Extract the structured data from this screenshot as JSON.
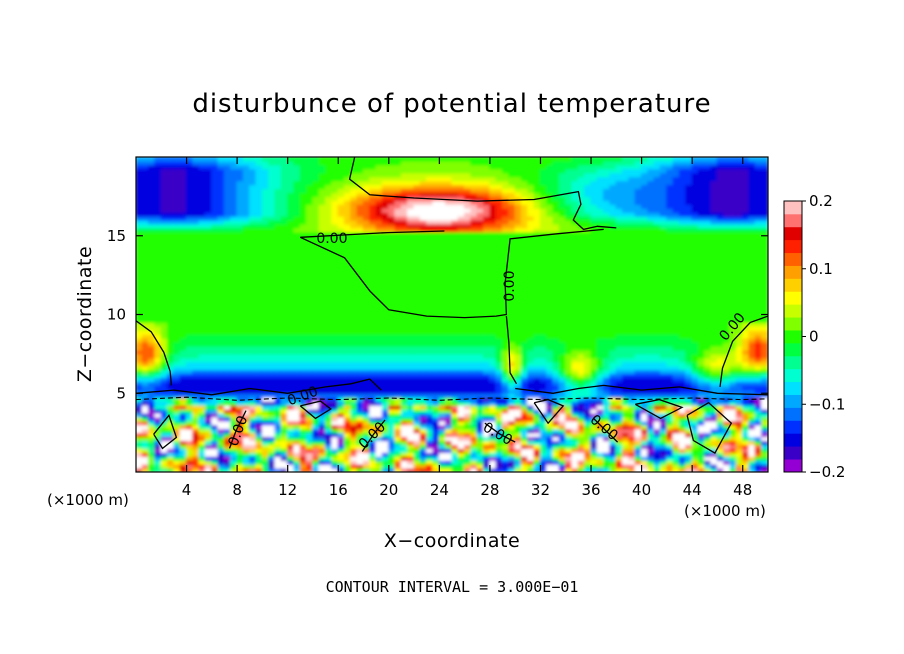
{
  "chart_data": {
    "type": "heatmap",
    "title": "disturbunce of potential temperature",
    "xlabel": "X−coordinate",
    "ylabel": "Z−coordinate",
    "x_unit_left": "(×1000 m)",
    "x_unit_right": "(×1000 m)",
    "xlim": [
      0,
      50
    ],
    "ylim": [
      0,
      20
    ],
    "x_ticks": [
      4,
      8,
      12,
      16,
      20,
      24,
      28,
      32,
      36,
      40,
      44,
      48
    ],
    "x_tick_labels": [
      "4",
      "8",
      "12",
      "16",
      "20",
      "24",
      "28",
      "32",
      "36",
      "40",
      "44",
      "48"
    ],
    "y_ticks": [
      5,
      10,
      15
    ],
    "y_tick_labels": [
      "5",
      "10",
      "15"
    ],
    "contour_interval_text": "CONTOUR INTERVAL = 3.000E−01",
    "contour_labels": [
      {
        "text": "0.00",
        "x": 15.5,
        "z": 14.8,
        "rotate": 0
      },
      {
        "text": "0.00",
        "x": 29.6,
        "z": 11.8,
        "rotate": -90
      },
      {
        "text": "0.00",
        "x": 47.2,
        "z": 9.2,
        "rotate": -50
      },
      {
        "text": "0.00",
        "x": 13.2,
        "z": 4.8,
        "rotate": -20
      },
      {
        "text": "0.00",
        "x": 8.1,
        "z": 2.6,
        "rotate": -70
      },
      {
        "text": "0.00",
        "x": 18.7,
        "z": 2.3,
        "rotate": -45
      },
      {
        "text": "0.00",
        "x": 28.6,
        "z": 2.4,
        "rotate": 30
      },
      {
        "text": "0.00",
        "x": 37.0,
        "z": 2.8,
        "rotate": 40
      }
    ],
    "colorbar": {
      "range": [
        -0.2,
        0.2
      ],
      "tick_labels": [
        "0.2",
        "0.1",
        "0",
        "−0.1",
        "−0.2"
      ],
      "tick_values": [
        0.2,
        0.1,
        0,
        -0.1,
        -0.2
      ],
      "colors": [
        "#9400d3",
        "#3a00c8",
        "#0000e0",
        "#0030ff",
        "#0070ff",
        "#00a8ff",
        "#00e0ff",
        "#00ffd0",
        "#00ff90",
        "#00ff40",
        "#20ff00",
        "#80ff00",
        "#c8ff00",
        "#ffff00",
        "#ffd000",
        "#ffa000",
        "#ff6000",
        "#ff2000",
        "#e00000",
        "#ff7070",
        "#ffc0c0"
      ]
    },
    "field_features": {
      "background_value": 0.0,
      "upper_cold_band": {
        "z": 17,
        "value": -0.17
      },
      "upper_warm_max": {
        "x": 24,
        "z": 16.5,
        "value": 0.22
      },
      "lower_cold_layer": {
        "z": 5.3,
        "value": -0.15
      },
      "turbulent_layer_top": 4.8
    }
  }
}
